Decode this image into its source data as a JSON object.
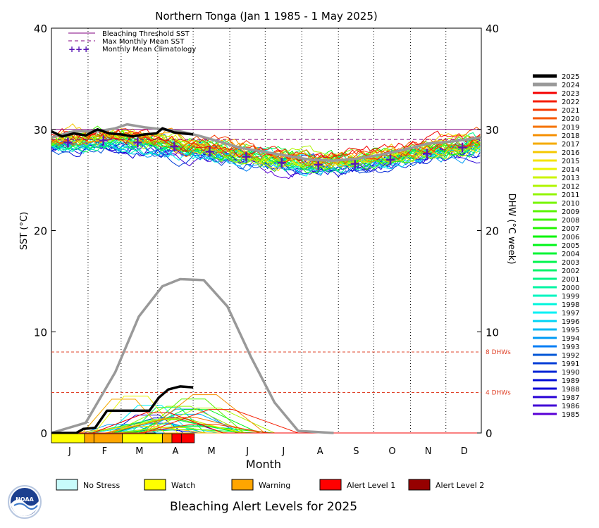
{
  "page_title": "Northern Tonga     (Jan 1 1985 - 1 May 2025)",
  "bottom_title": "Bleaching Alert Levels for 2025",
  "colors": {
    "threshold": "#800080",
    "mmm": "#800080",
    "climatology": "#5a17b5",
    "year_2025": "#000000",
    "year_2024": "#999999",
    "dhw_ref": "#e0442b",
    "no_stress": "#c8fbfb",
    "watch": "#ffff00",
    "warning": "#ffa500",
    "alert1": "#ff0000",
    "alert2": "#960000"
  },
  "chart_data": {
    "type": "line",
    "title": "Northern Tonga     (Jan 1 1985 - 1 May 2025)",
    "xlabel": "Month",
    "ylabel_left": "SST (°C)",
    "ylabel_right": "DHW (°C week)",
    "x_range_day_of_year": [
      1,
      365
    ],
    "ylim": [
      0,
      40
    ],
    "y_ticks": [
      0,
      10,
      20,
      30,
      40
    ],
    "month_ticks": [
      "J",
      "F",
      "M",
      "A",
      "M",
      "J",
      "J",
      "A",
      "S",
      "O",
      "N",
      "D"
    ],
    "grid": "vertical dotted lines at month boundaries",
    "legend_top": [
      {
        "label": "Bleaching Threshold SST",
        "style": "solid"
      },
      {
        "label": "Max Monthly Mean SST",
        "style": "dashed"
      },
      {
        "label": "Monthly Mean Climatology",
        "style": "crosses"
      }
    ],
    "bleaching_threshold_sst": 30.0,
    "max_monthly_mean_sst": 29.0,
    "dhw_reference_lines": [
      {
        "value": 8,
        "label": "8 DHWs"
      },
      {
        "value": 4,
        "label": "4 DHWs"
      }
    ],
    "monthly_mean_climatology": [
      {
        "month": "Jan",
        "day": 15,
        "value": 28.7
      },
      {
        "month": "Feb",
        "day": 45,
        "value": 28.9
      },
      {
        "month": "Mar",
        "day": 74,
        "value": 28.7
      },
      {
        "month": "Apr",
        "day": 105,
        "value": 28.3
      },
      {
        "month": "May",
        "day": 135,
        "value": 27.8
      },
      {
        "month": "Jun",
        "day": 166,
        "value": 27.3
      },
      {
        "month": "Jul",
        "day": 196,
        "value": 26.7
      },
      {
        "month": "Aug",
        "day": 227,
        "value": 26.5
      },
      {
        "month": "Sep",
        "day": 258,
        "value": 26.6
      },
      {
        "month": "Oct",
        "day": 288,
        "value": 27.0
      },
      {
        "month": "Nov",
        "day": 319,
        "value": 27.6
      },
      {
        "month": "Dec",
        "day": 349,
        "value": 28.2
      }
    ],
    "sst_2025": [
      {
        "day": 1,
        "value": 29.8
      },
      {
        "day": 10,
        "value": 29.3
      },
      {
        "day": 20,
        "value": 29.6
      },
      {
        "day": 30,
        "value": 29.4
      },
      {
        "day": 40,
        "value": 30.0
      },
      {
        "day": 50,
        "value": 29.6
      },
      {
        "day": 60,
        "value": 29.5
      },
      {
        "day": 70,
        "value": 29.3
      },
      {
        "day": 80,
        "value": 29.5
      },
      {
        "day": 90,
        "value": 29.6
      },
      {
        "day": 95,
        "value": 30.1
      },
      {
        "day": 105,
        "value": 29.7
      },
      {
        "day": 112,
        "value": 29.6
      },
      {
        "day": 121,
        "value": 29.5
      }
    ],
    "sst_2024": [
      {
        "day": 1,
        "value": 29.2
      },
      {
        "day": 20,
        "value": 29.8
      },
      {
        "day": 40,
        "value": 29.8
      },
      {
        "day": 55,
        "value": 30.1
      },
      {
        "day": 65,
        "value": 30.5
      },
      {
        "day": 80,
        "value": 30.2
      },
      {
        "day": 95,
        "value": 30.0
      },
      {
        "day": 110,
        "value": 29.8
      },
      {
        "day": 125,
        "value": 29.4
      },
      {
        "day": 140,
        "value": 28.9
      },
      {
        "day": 160,
        "value": 28.2
      },
      {
        "day": 180,
        "value": 27.8
      },
      {
        "day": 200,
        "value": 27.4
      },
      {
        "day": 220,
        "value": 27.0
      },
      {
        "day": 240,
        "value": 26.9
      },
      {
        "day": 260,
        "value": 27.1
      },
      {
        "day": 280,
        "value": 27.5
      },
      {
        "day": 300,
        "value": 28.0
      },
      {
        "day": 320,
        "value": 28.6
      },
      {
        "day": 340,
        "value": 28.8
      },
      {
        "day": 365,
        "value": 29.2
      }
    ],
    "dhw_2025": [
      {
        "day": 1,
        "value": 0.0
      },
      {
        "day": 22,
        "value": 0.0
      },
      {
        "day": 28,
        "value": 0.4
      },
      {
        "day": 38,
        "value": 0.5
      },
      {
        "day": 48,
        "value": 2.2
      },
      {
        "day": 75,
        "value": 2.2
      },
      {
        "day": 84,
        "value": 2.2
      },
      {
        "day": 92,
        "value": 3.5
      },
      {
        "day": 100,
        "value": 4.3
      },
      {
        "day": 110,
        "value": 4.6
      },
      {
        "day": 121,
        "value": 4.5
      }
    ],
    "dhw_2024": [
      {
        "day": 1,
        "value": 0.0
      },
      {
        "day": 30,
        "value": 1.0
      },
      {
        "day": 55,
        "value": 6.0
      },
      {
        "day": 75,
        "value": 11.5
      },
      {
        "day": 95,
        "value": 14.5
      },
      {
        "day": 110,
        "value": 15.2
      },
      {
        "day": 130,
        "value": 15.1
      },
      {
        "day": 150,
        "value": 12.5
      },
      {
        "day": 170,
        "value": 7.5
      },
      {
        "day": 190,
        "value": 3.0
      },
      {
        "day": 210,
        "value": 0.2
      },
      {
        "day": 240,
        "value": 0.0
      }
    ],
    "alert_levels_2025": [
      {
        "start_day": 1,
        "end_day": 28,
        "level": "Watch"
      },
      {
        "start_day": 29,
        "end_day": 36,
        "level": "Warning"
      },
      {
        "start_day": 37,
        "end_day": 60,
        "level": "Warning"
      },
      {
        "start_day": 61,
        "end_day": 94,
        "level": "Watch"
      },
      {
        "start_day": 95,
        "end_day": 102,
        "level": "Warning"
      },
      {
        "start_day": 103,
        "end_day": 110,
        "level": "Alert Level 1"
      },
      {
        "start_day": 111,
        "end_day": 121,
        "level": "Alert Level 1"
      }
    ],
    "year_legend": [
      "2025",
      "2024",
      "2023",
      "2022",
      "2021",
      "2020",
      "2019",
      "2018",
      "2017",
      "2016",
      "2015",
      "2014",
      "2013",
      "2012",
      "2011",
      "2010",
      "2009",
      "2008",
      "2007",
      "2006",
      "2005",
      "2004",
      "2003",
      "2002",
      "2001",
      "2000",
      "1999",
      "1998",
      "1997",
      "1996",
      "1995",
      "1994",
      "1993",
      "1992",
      "1991",
      "1990",
      "1989",
      "1988",
      "1987",
      "1986",
      "1985"
    ],
    "alert_legend": [
      "No Stress",
      "Watch",
      "Warning",
      "Alert Level 1",
      "Alert Level 2"
    ]
  }
}
